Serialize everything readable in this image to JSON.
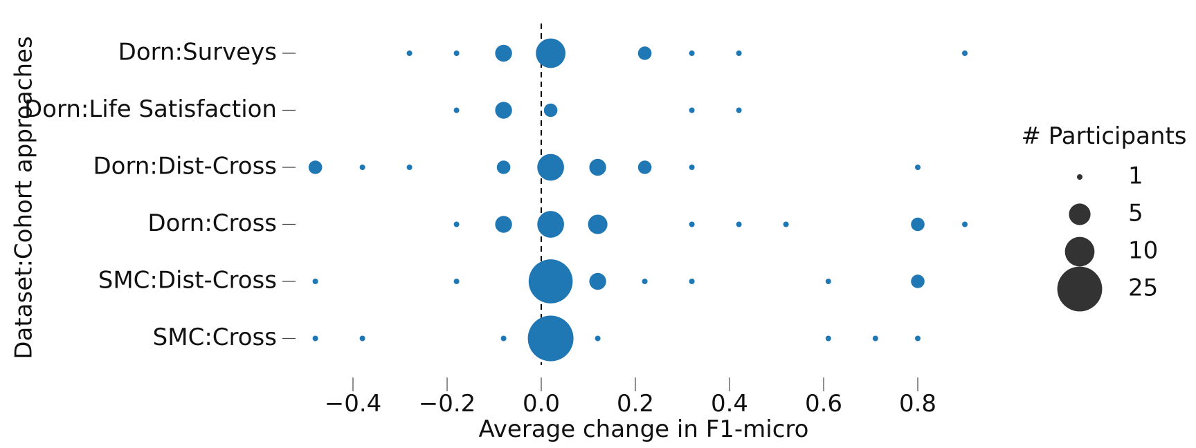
{
  "chart_data": {
    "type": "scatter",
    "title": "",
    "xlabel": "Average change in F1-micro",
    "ylabel": "Dataset:Cohort approaches",
    "xlim": [
      -0.5,
      0.92
    ],
    "xticks": [
      -0.4,
      -0.2,
      0.0,
      0.2,
      0.4,
      0.6,
      0.8
    ],
    "xtick_labels": [
      "−0.4",
      "−0.2",
      "0.0",
      "0.2",
      "0.4",
      "0.6",
      "0.8"
    ],
    "categories": [
      "Dorn:Surveys",
      "Dorn:Life Satisfaction",
      "Dorn:Dist-Cross",
      "Dorn:Cross",
      "SMC:Dist-Cross",
      "SMC:Cross"
    ],
    "reference_line": {
      "x": 0.0,
      "style": "dashed"
    },
    "grid": false,
    "legend_placement": "right",
    "point_color": "#1f77b4",
    "legend_color": "#333333",
    "size_legend": {
      "title": "# Participants",
      "entries": [
        {
          "label": "1",
          "value": 1
        },
        {
          "label": "5",
          "value": 5
        },
        {
          "label": "10",
          "value": 10
        },
        {
          "label": "25",
          "value": 25
        }
      ]
    },
    "points": [
      {
        "category": "Dorn:Surveys",
        "x": -0.28,
        "n": 1
      },
      {
        "category": "Dorn:Surveys",
        "x": -0.18,
        "n": 1
      },
      {
        "category": "Dorn:Surveys",
        "x": -0.08,
        "n": 3
      },
      {
        "category": "Dorn:Surveys",
        "x": 0.02,
        "n": 10
      },
      {
        "category": "Dorn:Surveys",
        "x": 0.22,
        "n": 2
      },
      {
        "category": "Dorn:Surveys",
        "x": 0.32,
        "n": 1
      },
      {
        "category": "Dorn:Surveys",
        "x": 0.42,
        "n": 1
      },
      {
        "category": "Dorn:Surveys",
        "x": 0.9,
        "n": 1
      },
      {
        "category": "Dorn:Life Satisfaction",
        "x": -0.18,
        "n": 1
      },
      {
        "category": "Dorn:Life Satisfaction",
        "x": -0.08,
        "n": 3
      },
      {
        "category": "Dorn:Life Satisfaction",
        "x": 0.02,
        "n": 2
      },
      {
        "category": "Dorn:Life Satisfaction",
        "x": 0.32,
        "n": 1
      },
      {
        "category": "Dorn:Life Satisfaction",
        "x": 0.42,
        "n": 1
      },
      {
        "category": "Dorn:Dist-Cross",
        "x": -0.48,
        "n": 2
      },
      {
        "category": "Dorn:Dist-Cross",
        "x": -0.38,
        "n": 1
      },
      {
        "category": "Dorn:Dist-Cross",
        "x": -0.28,
        "n": 1
      },
      {
        "category": "Dorn:Dist-Cross",
        "x": -0.08,
        "n": 2
      },
      {
        "category": "Dorn:Dist-Cross",
        "x": 0.02,
        "n": 8
      },
      {
        "category": "Dorn:Dist-Cross",
        "x": 0.12,
        "n": 3
      },
      {
        "category": "Dorn:Dist-Cross",
        "x": 0.22,
        "n": 2
      },
      {
        "category": "Dorn:Dist-Cross",
        "x": 0.32,
        "n": 1
      },
      {
        "category": "Dorn:Dist-Cross",
        "x": 0.8,
        "n": 1
      },
      {
        "category": "Dorn:Cross",
        "x": -0.18,
        "n": 1
      },
      {
        "category": "Dorn:Cross",
        "x": -0.08,
        "n": 3
      },
      {
        "category": "Dorn:Cross",
        "x": 0.02,
        "n": 8
      },
      {
        "category": "Dorn:Cross",
        "x": 0.12,
        "n": 4
      },
      {
        "category": "Dorn:Cross",
        "x": 0.32,
        "n": 1
      },
      {
        "category": "Dorn:Cross",
        "x": 0.42,
        "n": 1
      },
      {
        "category": "Dorn:Cross",
        "x": 0.52,
        "n": 1
      },
      {
        "category": "Dorn:Cross",
        "x": 0.8,
        "n": 2
      },
      {
        "category": "Dorn:Cross",
        "x": 0.9,
        "n": 1
      },
      {
        "category": "SMC:Dist-Cross",
        "x": -0.48,
        "n": 1
      },
      {
        "category": "SMC:Dist-Cross",
        "x": -0.18,
        "n": 1
      },
      {
        "category": "SMC:Dist-Cross",
        "x": 0.02,
        "n": 24
      },
      {
        "category": "SMC:Dist-Cross",
        "x": 0.12,
        "n": 3
      },
      {
        "category": "SMC:Dist-Cross",
        "x": 0.22,
        "n": 1
      },
      {
        "category": "SMC:Dist-Cross",
        "x": 0.32,
        "n": 1
      },
      {
        "category": "SMC:Dist-Cross",
        "x": 0.61,
        "n": 1
      },
      {
        "category": "SMC:Dist-Cross",
        "x": 0.8,
        "n": 2
      },
      {
        "category": "SMC:Cross",
        "x": -0.48,
        "n": 1
      },
      {
        "category": "SMC:Cross",
        "x": -0.38,
        "n": 1
      },
      {
        "category": "SMC:Cross",
        "x": -0.08,
        "n": 1
      },
      {
        "category": "SMC:Cross",
        "x": 0.02,
        "n": 26
      },
      {
        "category": "SMC:Cross",
        "x": 0.12,
        "n": 1
      },
      {
        "category": "SMC:Cross",
        "x": 0.61,
        "n": 1
      },
      {
        "category": "SMC:Cross",
        "x": 0.71,
        "n": 1
      },
      {
        "category": "SMC:Cross",
        "x": 0.8,
        "n": 1
      }
    ]
  }
}
